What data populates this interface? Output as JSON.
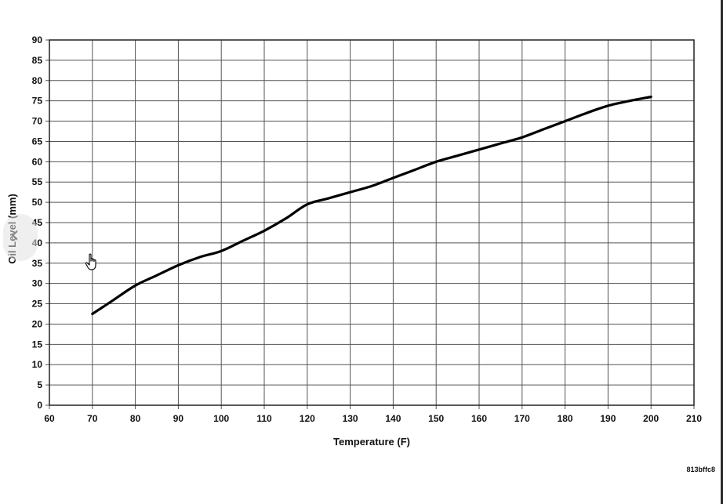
{
  "chart_data": {
    "type": "line",
    "title": "",
    "xlabel": "Temperature (F)",
    "ylabel": "Oil Level (mm)",
    "xlim": [
      60,
      210
    ],
    "ylim": [
      0,
      90
    ],
    "x_ticks": [
      60,
      70,
      80,
      90,
      100,
      110,
      120,
      130,
      140,
      150,
      160,
      170,
      180,
      190,
      200,
      210
    ],
    "y_ticks": [
      0,
      5,
      10,
      15,
      20,
      25,
      30,
      35,
      40,
      45,
      50,
      55,
      60,
      65,
      70,
      75,
      80,
      85,
      90
    ],
    "grid": true,
    "series": [
      {
        "x": [
          70,
          75,
          80,
          85,
          90,
          95,
          100,
          105,
          110,
          115,
          120,
          125,
          130,
          135,
          140,
          145,
          150,
          155,
          160,
          165,
          170,
          175,
          180,
          185,
          190,
          195,
          200
        ],
        "y": [
          22.5,
          26,
          29.5,
          32,
          34.5,
          36.5,
          38,
          40.5,
          43,
          46,
          49.5,
          51,
          52.5,
          54,
          56,
          58,
          60,
          61.5,
          63,
          64.5,
          66,
          68,
          70,
          72,
          73.8,
          75,
          76
        ],
        "color": "#000000"
      }
    ],
    "figure_code": "813bffc8"
  },
  "ui": {
    "nav_icon": "chevron-left-icon",
    "cursor_icon": "hand-pointer-icon"
  }
}
